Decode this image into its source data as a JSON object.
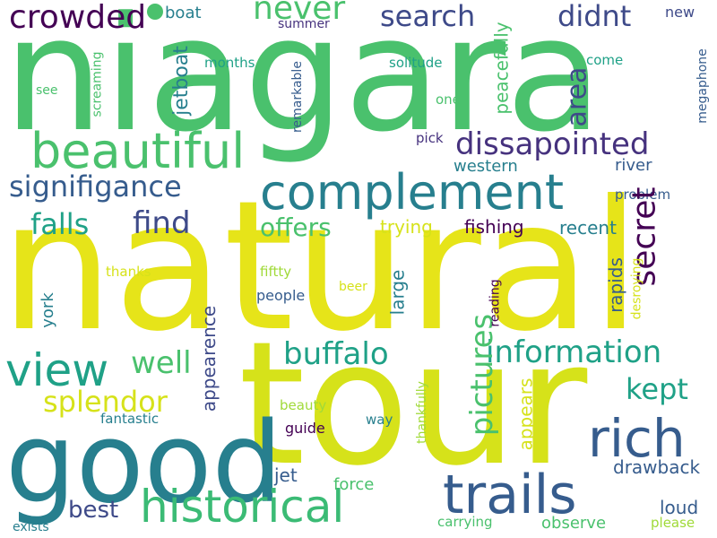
{
  "background": "#ffffff",
  "palette": {
    "purple": "#440154",
    "indigo": "#46327e",
    "blue": "#365c8d",
    "teal": "#277f8e",
    "green": "#1fa187",
    "lime": "#4ac16d",
    "chartreuse": "#a0da39",
    "yellow": "#e6e419"
  },
  "words": [
    {
      "id": "niagara",
      "text": "niagara",
      "color": "#4ac16d"
    },
    {
      "id": "natural",
      "text": "natural",
      "color": "#e6e419"
    },
    {
      "id": "tour",
      "text": "tour",
      "color": "#d6e21a"
    },
    {
      "id": "good",
      "text": "good",
      "color": "#277f8e"
    },
    {
      "id": "complement",
      "text": "complement",
      "color": "#277f8e"
    },
    {
      "id": "beautiful",
      "text": "beautiful",
      "color": "#4ac16d"
    },
    {
      "id": "trails",
      "text": "trails",
      "color": "#365c8d"
    },
    {
      "id": "historical",
      "text": "historical",
      "color": "#3bbb75"
    },
    {
      "id": "rich",
      "text": "rich",
      "color": "#365c8d"
    },
    {
      "id": "view",
      "text": "view",
      "color": "#1fa187"
    },
    {
      "id": "crowded",
      "text": "crowded",
      "color": "#440154"
    },
    {
      "id": "never",
      "text": "never",
      "color": "#4ac16d"
    },
    {
      "id": "search",
      "text": "search",
      "color": "#3e4a89"
    },
    {
      "id": "didnt",
      "text": "didnt",
      "color": "#3e4a89"
    },
    {
      "id": "dissapointed",
      "text": "dissapointed",
      "color": "#46327e"
    },
    {
      "id": "signifigance",
      "text": "signifigance",
      "color": "#365c8d"
    },
    {
      "id": "falls",
      "text": "falls",
      "color": "#1fa187"
    },
    {
      "id": "find",
      "text": "find",
      "color": "#3e4a89"
    },
    {
      "id": "offers",
      "text": "offers",
      "color": "#4ac16d"
    },
    {
      "id": "secret",
      "text": "secret",
      "color": "#440154"
    },
    {
      "id": "buffalo",
      "text": "buffalo",
      "color": "#1fa187"
    },
    {
      "id": "well",
      "text": "well",
      "color": "#4ac16d"
    },
    {
      "id": "information",
      "text": "information",
      "color": "#1fa187"
    },
    {
      "id": "pictures",
      "text": "pictures",
      "color": "#4ac16d"
    },
    {
      "id": "splendor",
      "text": "splendor",
      "color": "#d6e21a"
    },
    {
      "id": "kept",
      "text": "kept",
      "color": "#1fa187"
    },
    {
      "id": "area",
      "text": "area",
      "color": "#3e4a89"
    },
    {
      "id": "boat",
      "text": "boat",
      "color": "#277f8e"
    },
    {
      "id": "new",
      "text": "new",
      "color": "#3e4a89"
    },
    {
      "id": "summer",
      "text": "summer",
      "color": "#46327e"
    },
    {
      "id": "months",
      "text": "months",
      "color": "#1fa187"
    },
    {
      "id": "solitude",
      "text": "solitude",
      "color": "#1fa187"
    },
    {
      "id": "come",
      "text": "come",
      "color": "#1fa187"
    },
    {
      "id": "see",
      "text": "see",
      "color": "#4ac16d"
    },
    {
      "id": "one",
      "text": "one",
      "color": "#4ac16d"
    },
    {
      "id": "pick",
      "text": "pick",
      "color": "#46327e"
    },
    {
      "id": "western",
      "text": "western",
      "color": "#277f8e"
    },
    {
      "id": "river",
      "text": "river",
      "color": "#365c8d"
    },
    {
      "id": "problem",
      "text": "problem",
      "color": "#365c8d"
    },
    {
      "id": "trying",
      "text": "trying",
      "color": "#d6e21a"
    },
    {
      "id": "fishing",
      "text": "fishing",
      "color": "#440154"
    },
    {
      "id": "recent",
      "text": "recent",
      "color": "#277f8e"
    },
    {
      "id": "thanks",
      "text": "thanks",
      "color": "#d6e21a"
    },
    {
      "id": "fiftty",
      "text": "fiftty",
      "color": "#a0da39"
    },
    {
      "id": "people",
      "text": "people",
      "color": "#365c8d"
    },
    {
      "id": "beer",
      "text": "beer",
      "color": "#d6e21a"
    },
    {
      "id": "fantastic",
      "text": "fantastic",
      "color": "#277f8e"
    },
    {
      "id": "beauty",
      "text": "beauty",
      "color": "#a0da39"
    },
    {
      "id": "guide",
      "text": "guide",
      "color": "#440154"
    },
    {
      "id": "way",
      "text": "way",
      "color": "#277f8e"
    },
    {
      "id": "jet",
      "text": "jet",
      "color": "#365c8d"
    },
    {
      "id": "force",
      "text": "force",
      "color": "#4ac16d"
    },
    {
      "id": "drawback",
      "text": "drawback",
      "color": "#365c8d"
    },
    {
      "id": "best",
      "text": "best",
      "color": "#3e4a89"
    },
    {
      "id": "loud",
      "text": "loud",
      "color": "#365c8d"
    },
    {
      "id": "observe",
      "text": "observe",
      "color": "#4ac16d"
    },
    {
      "id": "carrying",
      "text": "carrying",
      "color": "#4ac16d"
    },
    {
      "id": "please",
      "text": "please",
      "color": "#a0da39"
    },
    {
      "id": "exists",
      "text": "exists",
      "color": "#277f8e"
    },
    {
      "id": "screaming",
      "text": "screaming",
      "color": "#4ac16d"
    },
    {
      "id": "jetboat",
      "text": "jetboat",
      "color": "#277f8e"
    },
    {
      "id": "remarkable",
      "text": "remarkable",
      "color": "#365c8d"
    },
    {
      "id": "peacefully",
      "text": "peacefully",
      "color": "#4ac16d"
    },
    {
      "id": "megaphone",
      "text": "megaphone",
      "color": "#365c8d"
    },
    {
      "id": "large",
      "text": "large",
      "color": "#277f8e"
    },
    {
      "id": "reading",
      "text": "reading",
      "color": "#440154"
    },
    {
      "id": "desroying",
      "text": "desroying",
      "color": "#d6e21a"
    },
    {
      "id": "rapids",
      "text": "rapids",
      "color": "#365c8d"
    },
    {
      "id": "york",
      "text": "york",
      "color": "#277f8e"
    },
    {
      "id": "appearence",
      "text": "appearence",
      "color": "#3e4a89"
    },
    {
      "id": "appears",
      "text": "appears",
      "color": "#d6e21a"
    },
    {
      "id": "thankfully",
      "text": "thankfully",
      "color": "#a0da39"
    }
  ]
}
